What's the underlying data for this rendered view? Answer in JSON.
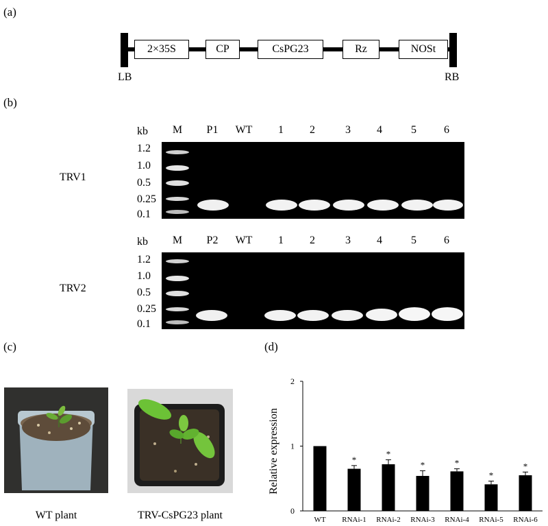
{
  "panels": {
    "a": "(a)",
    "b": "(b)",
    "c": "(c)",
    "d": "(d)"
  },
  "construct": {
    "left_border": "LB",
    "right_border": "RB",
    "elements": [
      "2×35S",
      "CP",
      "CsPG23",
      "Rz",
      "NOSt"
    ]
  },
  "gel": {
    "unit": "kb",
    "sizes": [
      "1.2",
      "1.0",
      "0.5",
      "0.25",
      "0.1"
    ],
    "top": {
      "row_label": "TRV1",
      "lanes": [
        "M",
        "P1",
        "WT",
        "1",
        "2",
        "3",
        "4",
        "5",
        "6"
      ]
    },
    "bottom": {
      "row_label": "TRV2",
      "lanes": [
        "M",
        "P2",
        "WT",
        "1",
        "2",
        "3",
        "4",
        "5",
        "6"
      ]
    }
  },
  "photos": {
    "left_caption": "WT plant",
    "right_caption": "TRV-CsPG23 plant"
  },
  "chart_data": {
    "type": "bar",
    "categories": [
      "WT",
      "RNAi-1",
      "RNAi-2",
      "RNAi-3",
      "RNAi-4",
      "RNAi-5",
      "RNAi-6"
    ],
    "values": [
      1.0,
      0.65,
      0.72,
      0.54,
      0.61,
      0.41,
      0.55
    ],
    "errors": [
      0.0,
      0.05,
      0.07,
      0.08,
      0.04,
      0.05,
      0.05
    ],
    "significance": [
      "",
      "*",
      "*",
      "*",
      "*",
      "*",
      "*"
    ],
    "ylabel": "Relative expression",
    "yticks": [
      "0",
      "1",
      "2"
    ],
    "ylim": [
      0,
      2
    ],
    "bar_color": "#000000"
  }
}
